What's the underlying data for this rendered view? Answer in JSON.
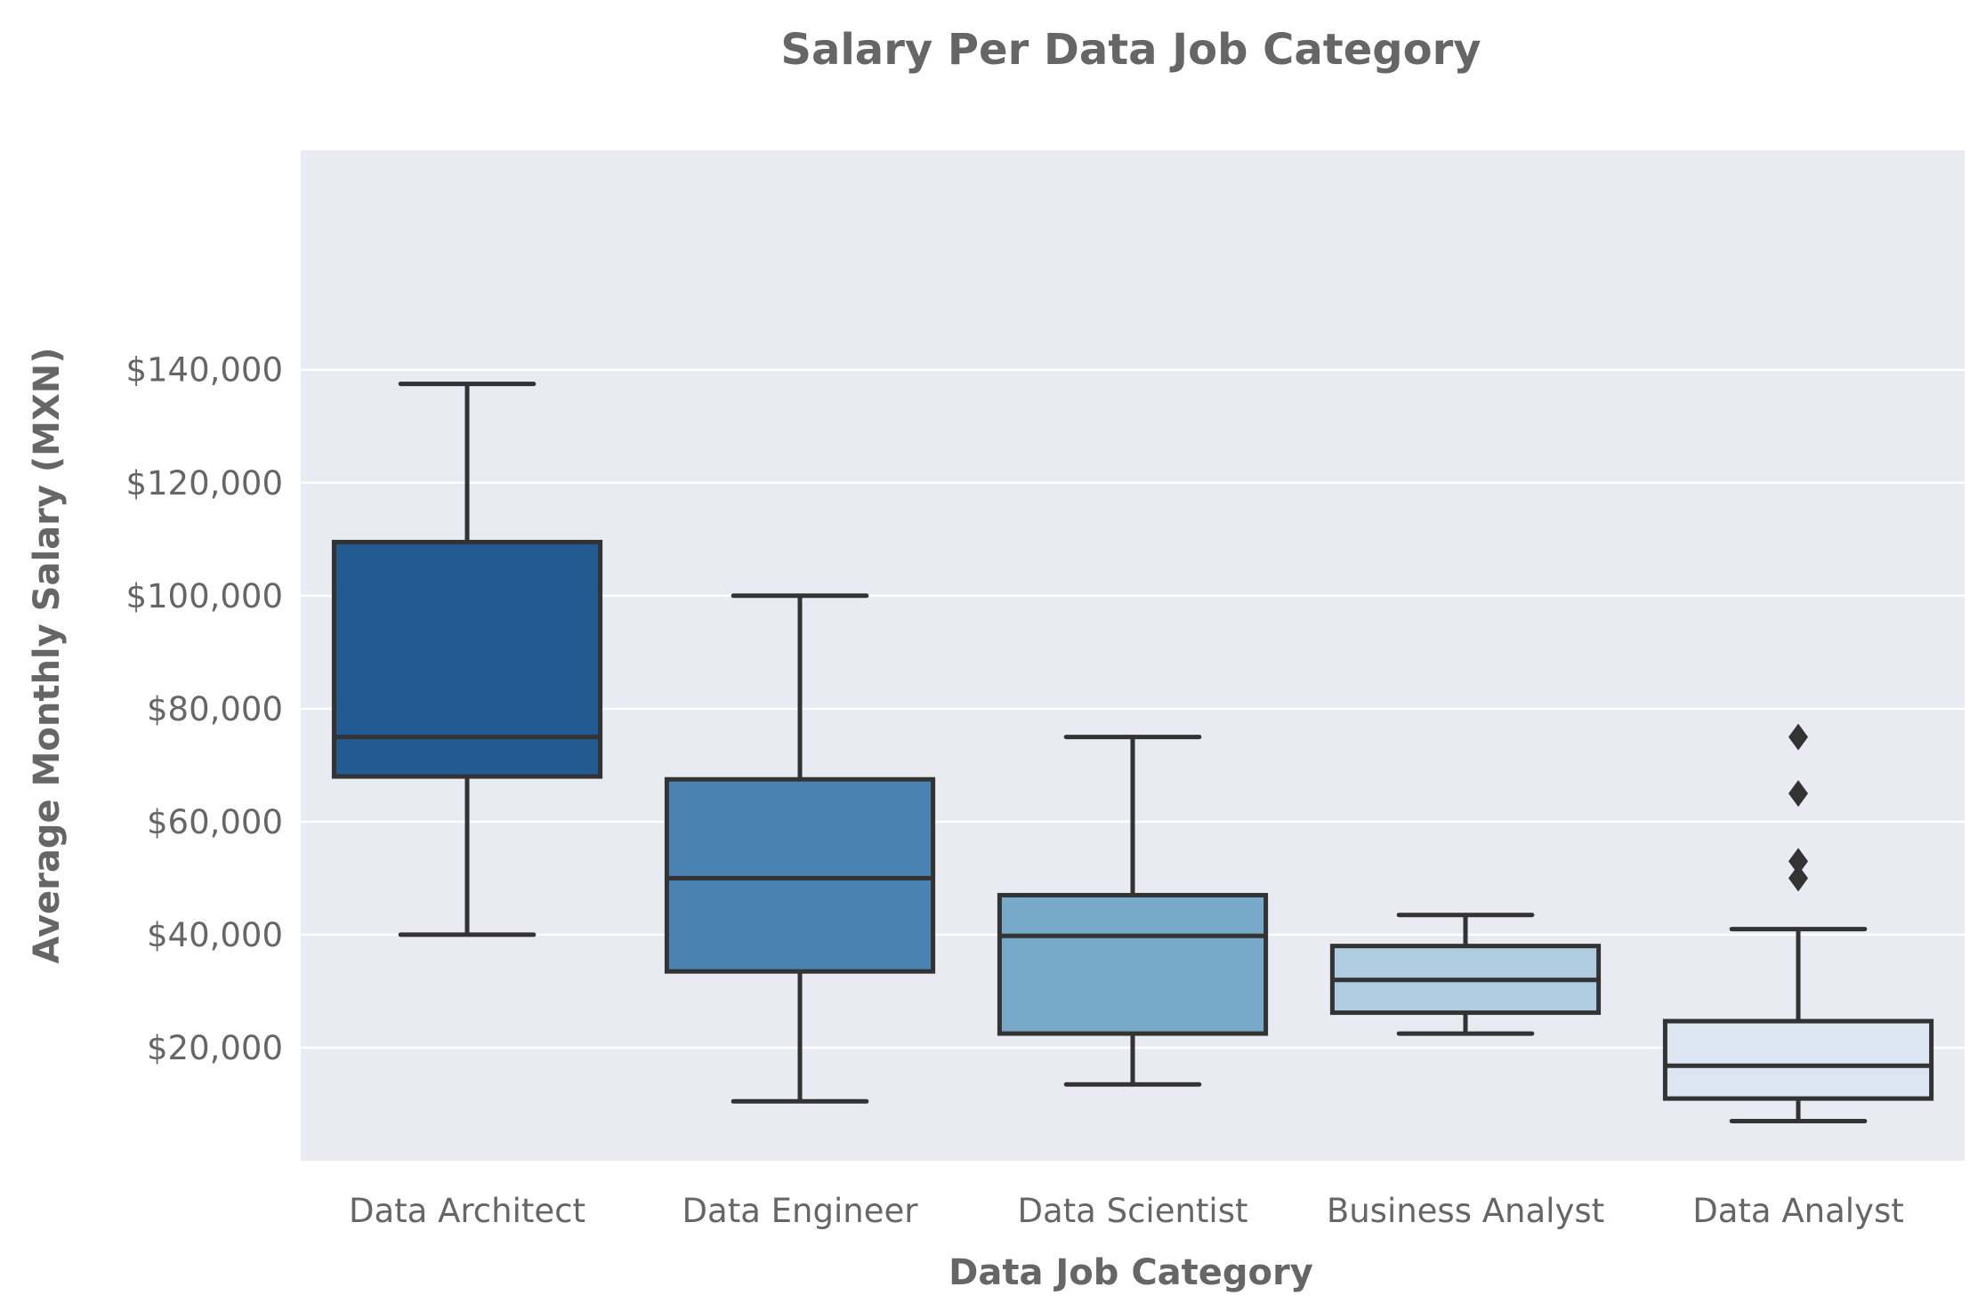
{
  "chart_data": {
    "type": "box",
    "title": "Salary Per Data Job Category",
    "xlabel": "Data Job Category",
    "ylabel": "Average Monthly Salary (MXN)",
    "ylim": [
      0,
      144000
    ],
    "yticks": [
      20000,
      40000,
      60000,
      80000,
      100000,
      120000,
      140000
    ],
    "ytick_labels": [
      "$20,000",
      "$40,000",
      "$60,000",
      "$80,000",
      "$100,000",
      "$120,000",
      "$140,000"
    ],
    "grid": true,
    "categories": [
      "Data Architect",
      "Data Engineer",
      "Data Scientist",
      "Business Analyst",
      "Data Analyst"
    ],
    "boxes": [
      {
        "category": "Data Architect",
        "whisker_low": 40000,
        "q1": 68000,
        "median": 75000,
        "q3": 109500,
        "whisker_high": 137500,
        "outliers": [],
        "color": "#225b92"
      },
      {
        "category": "Data Engineer",
        "whisker_low": 10500,
        "q1": 33500,
        "median": 50000,
        "q3": 67500,
        "whisker_high": 100000,
        "outliers": [],
        "color": "#4a83b1"
      },
      {
        "category": "Data Scientist",
        "whisker_low": 13500,
        "q1": 22500,
        "median": 39800,
        "q3": 47000,
        "whisker_high": 75000,
        "outliers": [],
        "color": "#79a9c9"
      },
      {
        "category": "Business Analyst",
        "whisker_low": 22500,
        "q1": 26200,
        "median": 32000,
        "q3": 38000,
        "whisker_high": 43500,
        "outliers": [],
        "color": "#afcce0"
      },
      {
        "category": "Data Analyst",
        "whisker_low": 7000,
        "q1": 11000,
        "median": 16800,
        "q3": 24700,
        "whisker_high": 41000,
        "outliers": [
          50000,
          53000,
          65000,
          75000
        ],
        "color": "#dbe6f2"
      }
    ]
  },
  "colors": {
    "plot_background": "#eaeaf2",
    "grid": "#ffffff",
    "box_edge": "#333333",
    "text": "#666666"
  }
}
